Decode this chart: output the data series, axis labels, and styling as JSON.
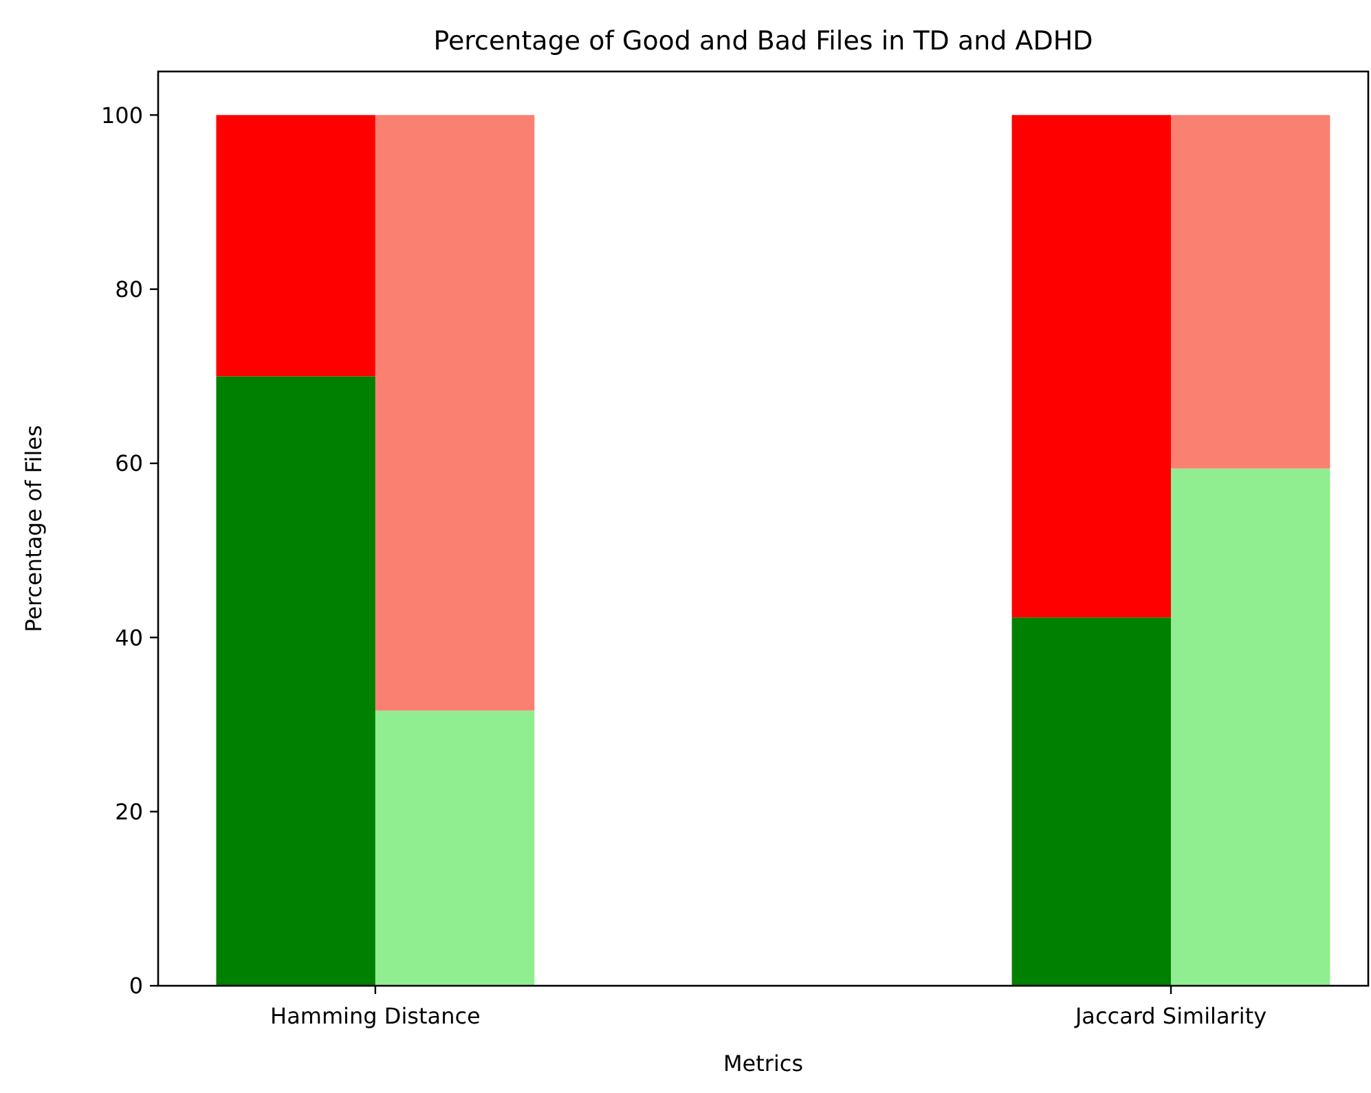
{
  "chart_data": {
    "type": "bar",
    "title": "Percentage of Good and Bad Files in TD and ADHD",
    "xlabel": "Metrics",
    "ylabel": "Percentage of Files",
    "stacked": true,
    "categories": [
      "Hamming Distance",
      null,
      null,
      null,
      null,
      "Jaccard Similarity",
      null
    ],
    "series": [
      {
        "colors": [
          "#008000",
          "#90ee90",
          null,
          null,
          null,
          "#008000",
          "#90ee90"
        ],
        "values": [
          70,
          31.6,
          null,
          null,
          null,
          42.3,
          59.4
        ]
      },
      {
        "colors": [
          "#ff0000",
          "#fa8072",
          null,
          null,
          null,
          "#ff0000",
          "#fa8072"
        ],
        "values": [
          30,
          68.4,
          null,
          null,
          null,
          57.7,
          40.6
        ]
      }
    ],
    "ylim": [
      0,
      105
    ],
    "yticks": [
      0,
      20,
      40,
      60,
      80,
      100
    ],
    "grid": false
  }
}
